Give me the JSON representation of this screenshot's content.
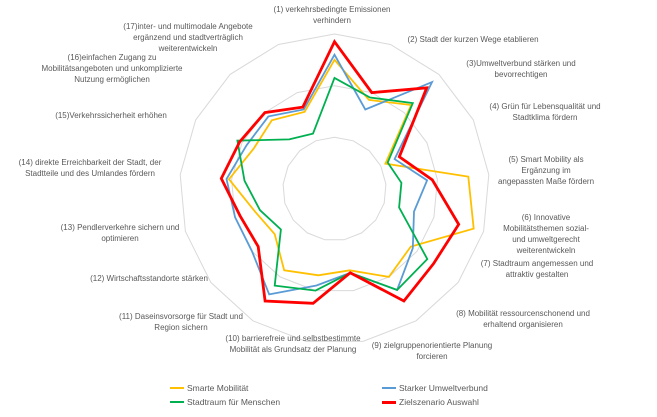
{
  "chart_data": {
    "type": "radar",
    "title": "",
    "axis_count": 17,
    "value_range": [
      0,
      3
    ],
    "grid_rings": [
      1,
      2,
      3
    ],
    "grid_color": "#D9D9D9",
    "label_color": "#595959",
    "legend_position": "bottom",
    "axes": [
      {
        "num": 1,
        "label": "(1) verkehrsbedingte Emissionen\nverhindern"
      },
      {
        "num": 2,
        "label": "(2) Stadt der kurzen Wege etablieren"
      },
      {
        "num": 3,
        "label": "(3)Umweltverbund stärken und\nbevorrechtigen"
      },
      {
        "num": 4,
        "label": "(4) Grün für Lebensqualität und\nStadtklima fördern"
      },
      {
        "num": 5,
        "label": "(5) Smart Mobility als Ergänzung im\nangepassten Maße fördern"
      },
      {
        "num": 6,
        "label": "(6) Innovative Mobilitätsthemen sozial-\nund umweltgerecht weiterentwickeln"
      },
      {
        "num": 7,
        "label": "(7) Stadtraum angemessen und\nattraktiv gestalten"
      },
      {
        "num": 8,
        "label": "(8) Mobilität ressourcenschonend und\nerhaltend organisieren"
      },
      {
        "num": 9,
        "label": "(9) zielgruppenorientierte Planung\nforcieren"
      },
      {
        "num": 10,
        "label": "(10) barrierefreie und selbstbestimmte\nMobilität als Grundsatz der Planung"
      },
      {
        "num": 11,
        "label": "(11) Daseinsvorsorge für Stadt und\nRegion sichern"
      },
      {
        "num": 12,
        "label": "(12) Wirtschaftsstandorte stärken"
      },
      {
        "num": 13,
        "label": "(13) Pendlerverkehre sichern und\noptimieren"
      },
      {
        "num": 14,
        "label": "(14) direkte Erreichbarkeit der Stadt, der\nStadtteile und des Umlandes fördern"
      },
      {
        "num": 15,
        "label": "(15)Verkehrssicherheit erhöhen"
      },
      {
        "num": 16,
        "label": "(16)einfachen Zugang zu\nMobilitätsangeboten und unkomplizierte\nNutzung ermöglichen"
      },
      {
        "num": 17,
        "label": "(17)inter- und multimodale Angebote\nergänzend und stadtverträglich\nweiterentwickeln"
      }
    ],
    "series": [
      {
        "name": "Smarte Mobilität",
        "color": "#FFC000",
        "values": [
          2.5,
          1.85,
          2.2,
          1.1,
          2.6,
          2.8,
          1.85,
          2.0,
          1.6,
          1.7,
          1.85,
          1.45,
          1.6,
          2.05,
          1.75,
          1.8,
          1.6
        ]
      },
      {
        "name": "Starker Umweltverbund",
        "color": "#5B9BD5",
        "values": [
          2.6,
          1.65,
          2.8,
          1.3,
          1.8,
          1.6,
          1.9,
          2.3,
          1.65,
          1.9,
          2.4,
          2.0,
          2.0,
          2.1,
          1.9,
          1.9,
          1.65
        ]
      },
      {
        "name": "Stadtraum für Menschen",
        "color": "#00B050",
        "values": [
          2.15,
          1.9,
          2.25,
          1.15,
          1.3,
          1.3,
          2.25,
          2.3,
          1.65,
          2.0,
          2.2,
          1.3,
          1.5,
          1.75,
          2.1,
          1.3,
          1.15
        ]
      },
      {
        "name": "Zielszenario Auswahl",
        "color": "#FF0000",
        "values": [
          2.85,
          2.0,
          2.65,
          1.4,
          1.9,
          2.5,
          2.4,
          2.55,
          1.65,
          2.25,
          2.55,
          1.85,
          1.9,
          2.2,
          2.05,
          2.0,
          1.7
        ]
      }
    ]
  }
}
